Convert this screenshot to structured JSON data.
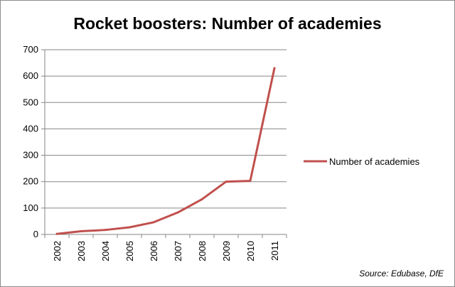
{
  "chart_data": {
    "type": "line",
    "title": "Rocket boosters:  Number of academies",
    "x": [
      "2002",
      "2003",
      "2004",
      "2005",
      "2006",
      "2007",
      "2008",
      "2009",
      "2010",
      "2011"
    ],
    "series": [
      {
        "name": "Number of academies",
        "values": [
          2,
          12,
          17,
          27,
          46,
          83,
          133,
          200,
          203,
          630
        ],
        "color": "#c0504d"
      }
    ],
    "ylim": [
      0,
      700
    ],
    "yticks": [
      0,
      100,
      200,
      300,
      400,
      500,
      600,
      700
    ],
    "grid": true,
    "legend_position": "right",
    "source": "Source: Edubase, DfE"
  }
}
